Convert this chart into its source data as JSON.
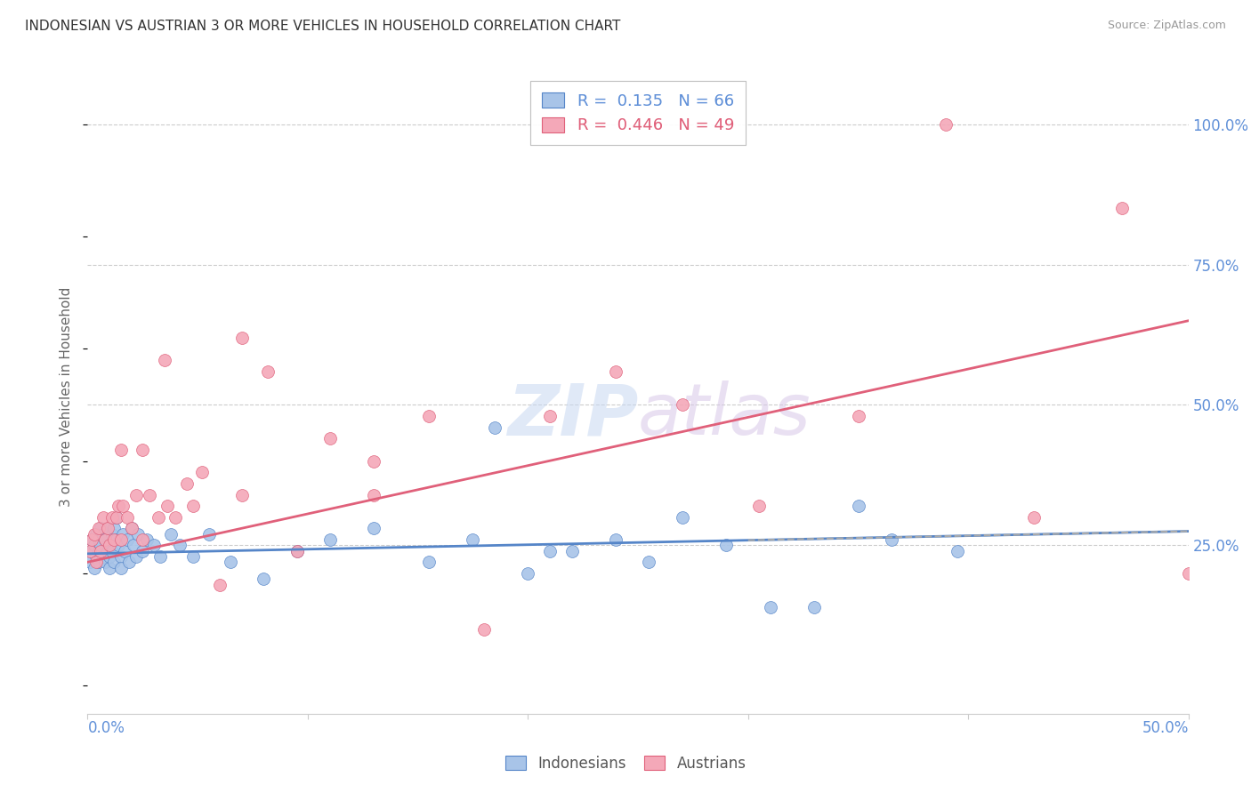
{
  "title": "INDONESIAN VS AUSTRIAN 3 OR MORE VEHICLES IN HOUSEHOLD CORRELATION CHART",
  "source": "Source: ZipAtlas.com",
  "ylabel": "3 or more Vehicles in Household",
  "color_indonesian": "#a8c4e8",
  "color_austrian": "#f4a8b8",
  "color_trend_indonesian": "#5585c8",
  "color_trend_austrian": "#e0607a",
  "color_axis_labels": "#6090d8",
  "xlim": [
    0.0,
    0.5
  ],
  "ylim": [
    -0.05,
    1.08
  ],
  "indonesian_x": [
    0.001,
    0.002,
    0.002,
    0.003,
    0.003,
    0.004,
    0.004,
    0.005,
    0.005,
    0.005,
    0.006,
    0.006,
    0.007,
    0.007,
    0.008,
    0.008,
    0.009,
    0.009,
    0.01,
    0.01,
    0.01,
    0.011,
    0.011,
    0.012,
    0.012,
    0.013,
    0.013,
    0.014,
    0.015,
    0.015,
    0.016,
    0.017,
    0.018,
    0.019,
    0.02,
    0.021,
    0.022,
    0.023,
    0.025,
    0.027,
    0.03,
    0.033,
    0.038,
    0.042,
    0.048,
    0.055,
    0.065,
    0.08,
    0.095,
    0.11,
    0.13,
    0.155,
    0.175,
    0.2,
    0.22,
    0.255,
    0.29,
    0.33,
    0.365,
    0.395,
    0.185,
    0.21,
    0.24,
    0.27,
    0.31,
    0.35
  ],
  "indonesian_y": [
    0.22,
    0.26,
    0.24,
    0.21,
    0.25,
    0.23,
    0.27,
    0.24,
    0.22,
    0.26,
    0.25,
    0.28,
    0.23,
    0.27,
    0.22,
    0.26,
    0.24,
    0.28,
    0.21,
    0.25,
    0.23,
    0.27,
    0.24,
    0.28,
    0.22,
    0.26,
    0.3,
    0.25,
    0.23,
    0.21,
    0.27,
    0.24,
    0.26,
    0.22,
    0.28,
    0.25,
    0.23,
    0.27,
    0.24,
    0.26,
    0.25,
    0.23,
    0.27,
    0.25,
    0.23,
    0.27,
    0.22,
    0.19,
    0.24,
    0.26,
    0.28,
    0.22,
    0.26,
    0.2,
    0.24,
    0.22,
    0.25,
    0.14,
    0.26,
    0.24,
    0.46,
    0.24,
    0.26,
    0.3,
    0.14,
    0.32
  ],
  "austrian_x": [
    0.001,
    0.002,
    0.003,
    0.004,
    0.005,
    0.006,
    0.007,
    0.008,
    0.009,
    0.01,
    0.011,
    0.012,
    0.013,
    0.014,
    0.015,
    0.016,
    0.018,
    0.02,
    0.022,
    0.025,
    0.028,
    0.032,
    0.036,
    0.04,
    0.045,
    0.052,
    0.06,
    0.07,
    0.082,
    0.095,
    0.11,
    0.13,
    0.155,
    0.18,
    0.21,
    0.24,
    0.27,
    0.305,
    0.35,
    0.39,
    0.43,
    0.47,
    0.5,
    0.015,
    0.025,
    0.035,
    0.048,
    0.07,
    0.13
  ],
  "austrian_y": [
    0.24,
    0.26,
    0.27,
    0.22,
    0.28,
    0.24,
    0.3,
    0.26,
    0.28,
    0.25,
    0.3,
    0.26,
    0.3,
    0.32,
    0.26,
    0.32,
    0.3,
    0.28,
    0.34,
    0.26,
    0.34,
    0.3,
    0.32,
    0.3,
    0.36,
    0.38,
    0.18,
    0.34,
    0.56,
    0.24,
    0.44,
    0.4,
    0.48,
    0.1,
    0.48,
    0.56,
    0.5,
    0.32,
    0.48,
    1.0,
    0.3,
    0.85,
    0.2,
    0.42,
    0.42,
    0.58,
    0.32,
    0.62,
    0.34
  ],
  "trend_indo_x0": 0.0,
  "trend_indo_x1": 0.5,
  "trend_indo_y0": 0.235,
  "trend_indo_y1": 0.275,
  "trend_aust_x0": 0.0,
  "trend_aust_x1": 0.5,
  "trend_aust_y0": 0.22,
  "trend_aust_y1": 0.65
}
